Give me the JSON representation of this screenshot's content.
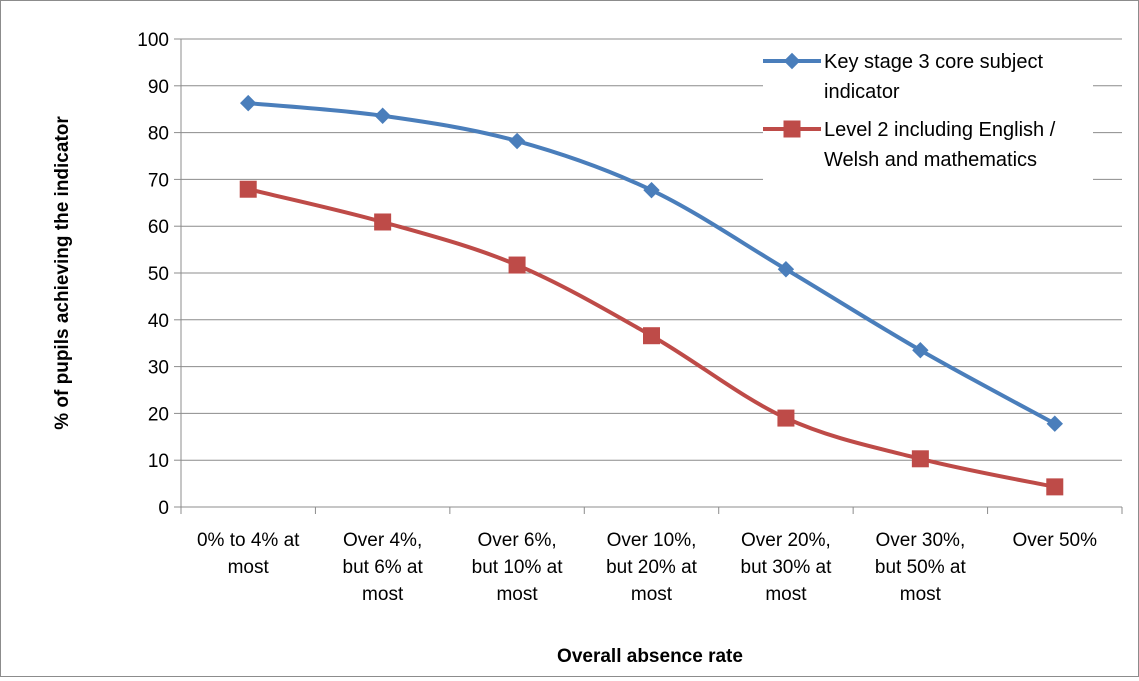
{
  "chart_data": {
    "type": "line",
    "title": "",
    "xlabel": "Overall absence rate",
    "ylabel": "% of pupils achieving the indicator",
    "ylim": [
      0,
      100
    ],
    "ytick_step": 10,
    "grid": true,
    "legend_position": "top-right",
    "categories": [
      [
        "0% to 4% at",
        "most"
      ],
      [
        "Over 4%,",
        "but 6% at",
        "most"
      ],
      [
        "Over 6%,",
        "but 10% at",
        "most"
      ],
      [
        "Over 10%,",
        "but 20% at",
        "most"
      ],
      [
        "Over 20%,",
        "but 30% at",
        "most"
      ],
      [
        "Over 30%,",
        "but 50% at",
        "most"
      ],
      [
        "Over 50%"
      ]
    ],
    "series": [
      {
        "name": "Key stage 3 core subject indicator",
        "name_lines": [
          "Key stage 3 core subject",
          "indicator"
        ],
        "color": "#4a7ebb",
        "marker": "diamond",
        "values": [
          86.3,
          83.6,
          78.2,
          67.7,
          50.8,
          33.5,
          17.8
        ]
      },
      {
        "name": "Level 2 including English / Welsh and mathematics",
        "name_lines": [
          "Level 2 including English /",
          "Welsh and mathematics"
        ],
        "color": "#be4b48",
        "marker": "square",
        "values": [
          67.9,
          60.9,
          51.7,
          36.6,
          19.0,
          10.3,
          4.3
        ]
      }
    ]
  }
}
